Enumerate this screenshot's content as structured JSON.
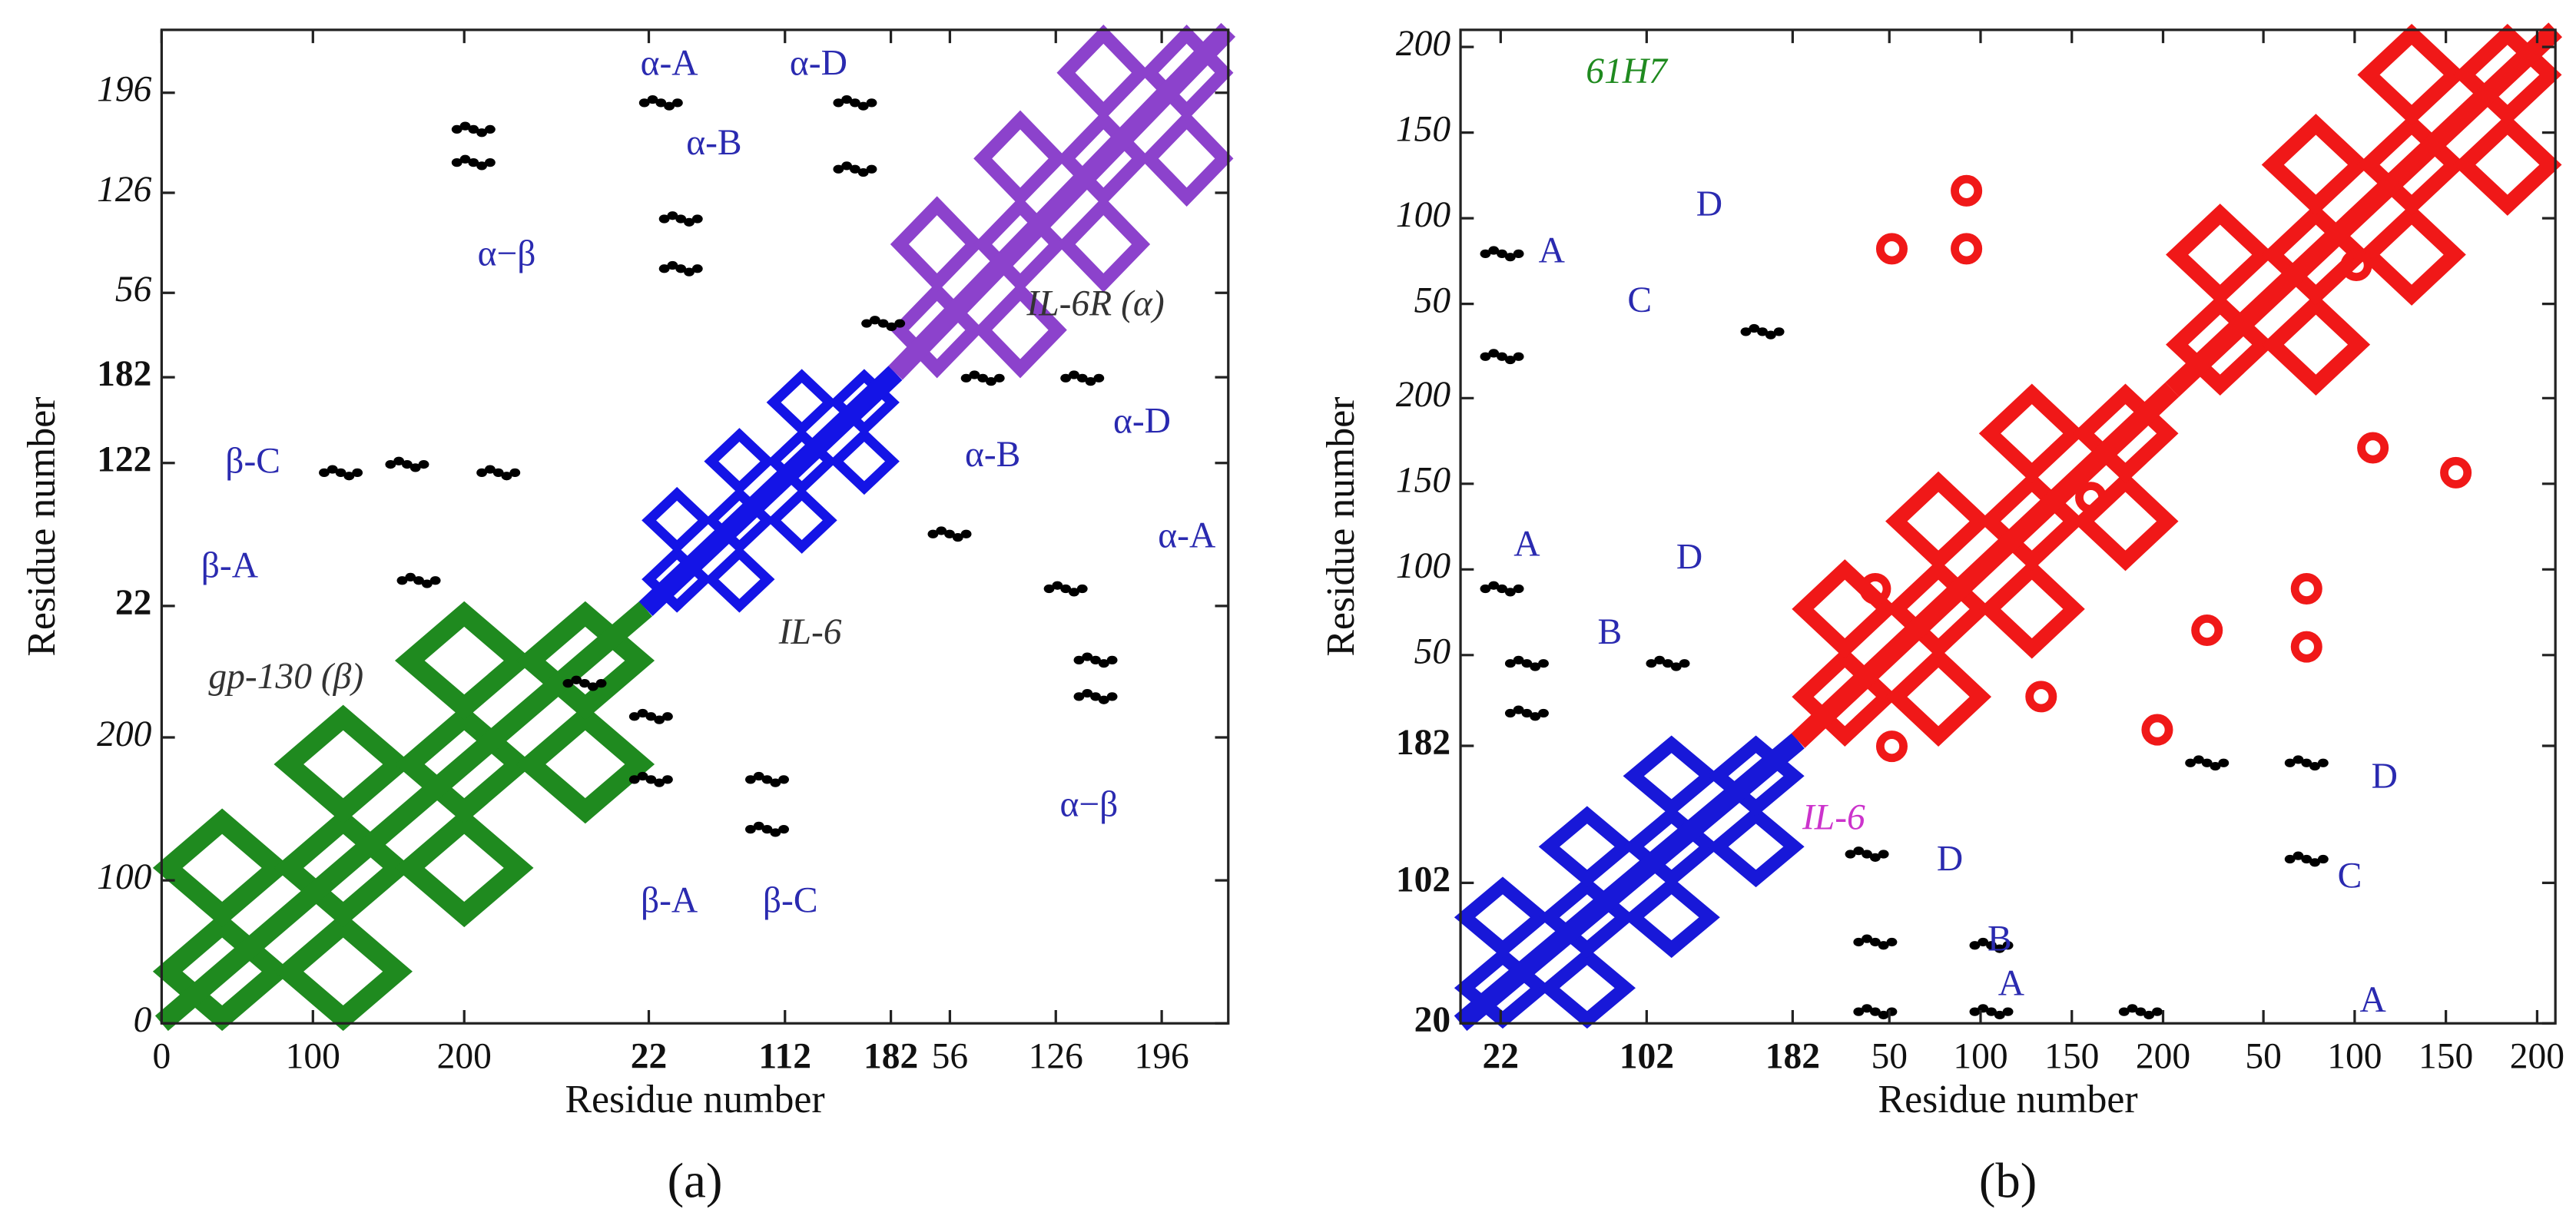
{
  "chart_data": [
    {
      "type": "contact_map",
      "caption": "(a)",
      "x_label": "Residue number",
      "y_label": "Residue number",
      "x_segments": [
        {
          "xlim": [
            0,
            320
          ],
          "xticks": [
            0,
            100,
            200
          ],
          "color": "#1f8a1f"
        },
        {
          "xlim": [
            20,
            185
          ],
          "xticks": [
            22,
            112,
            182
          ],
          "color": "#1414e6",
          "bold_ticks": true
        },
        {
          "xlim": [
            20,
            240
          ],
          "xticks": [
            56,
            126,
            196
          ],
          "color": "#8c42cc"
        }
      ],
      "y_segments": [
        {
          "ylim": [
            0,
            290
          ],
          "yticks": [
            0,
            100,
            200
          ]
        },
        {
          "ylim": [
            20,
            185
          ],
          "yticks": [
            22,
            122,
            182
          ],
          "bold_ticks": true
        },
        {
          "ylim": [
            0,
            240
          ],
          "yticks": [
            56,
            126,
            196
          ]
        }
      ],
      "annotations": [
        {
          "text": "α-A",
          "color": "#2a2ab0"
        },
        {
          "text": "α-D",
          "color": "#2a2ab0"
        },
        {
          "text": "α-B",
          "color": "#2a2ab0"
        },
        {
          "text": "α−β",
          "color": "#2a2ab0"
        },
        {
          "text": "IL-6R (α)",
          "color": "#333333",
          "italic": true
        },
        {
          "text": "β-C",
          "color": "#2a2ab0"
        },
        {
          "text": "α-B",
          "color": "#2a2ab0"
        },
        {
          "text": "α-D",
          "color": "#2a2ab0"
        },
        {
          "text": "β-A",
          "color": "#2a2ab0"
        },
        {
          "text": "α-A",
          "color": "#2a2ab0"
        },
        {
          "text": "gp-130 (β)",
          "color": "#333333",
          "italic": true
        },
        {
          "text": "IL-6",
          "color": "#333333",
          "italic": true
        },
        {
          "text": "α−β",
          "color": "#2a2ab0"
        },
        {
          "text": "β-A",
          "color": "#2a2ab0"
        },
        {
          "text": "β-C",
          "color": "#2a2ab0"
        }
      ]
    },
    {
      "type": "contact_map",
      "caption": "(b)",
      "x_label": "Residue number",
      "y_label": "Residue number",
      "x_segments": [
        {
          "xlim": [
            0,
            185
          ],
          "xticks": [
            22,
            102,
            182
          ],
          "color": "#1818d8",
          "bold_ticks": true
        },
        {
          "xlim": [
            0,
            205
          ],
          "xticks": [
            50,
            100,
            150,
            200
          ],
          "color": "#f01818"
        },
        {
          "xlim": [
            0,
            210
          ],
          "xticks": [
            50,
            100,
            150,
            200
          ],
          "color": "#f01818"
        }
      ],
      "y_segments": [
        {
          "ylim": [
            20,
            185
          ],
          "yticks": [
            20,
            102,
            182
          ],
          "bold_ticks": true
        },
        {
          "ylim": [
            0,
            205
          ],
          "yticks": [
            50,
            100,
            150,
            200
          ]
        },
        {
          "ylim": [
            0,
            210
          ],
          "yticks": [
            50,
            100,
            150,
            200
          ]
        }
      ],
      "annotations": [
        {
          "text": "61H7",
          "color": "#1f8a1f",
          "italic": true
        },
        {
          "text": "A",
          "color": "#2a2ab0"
        },
        {
          "text": "D",
          "color": "#2a2ab0"
        },
        {
          "text": "C",
          "color": "#2a2ab0"
        },
        {
          "text": "A",
          "color": "#2a2ab0"
        },
        {
          "text": "D",
          "color": "#2a2ab0"
        },
        {
          "text": "B",
          "color": "#2a2ab0"
        },
        {
          "text": "IL-6",
          "color": "#cc33cc",
          "italic": true
        },
        {
          "text": "D",
          "color": "#2a2ab0"
        },
        {
          "text": "D",
          "color": "#2a2ab0"
        },
        {
          "text": "C",
          "color": "#2a2ab0"
        },
        {
          "text": "B",
          "color": "#2a2ab0"
        },
        {
          "text": "A",
          "color": "#2a2ab0"
        },
        {
          "text": "A",
          "color": "#2a2ab0"
        }
      ]
    }
  ]
}
